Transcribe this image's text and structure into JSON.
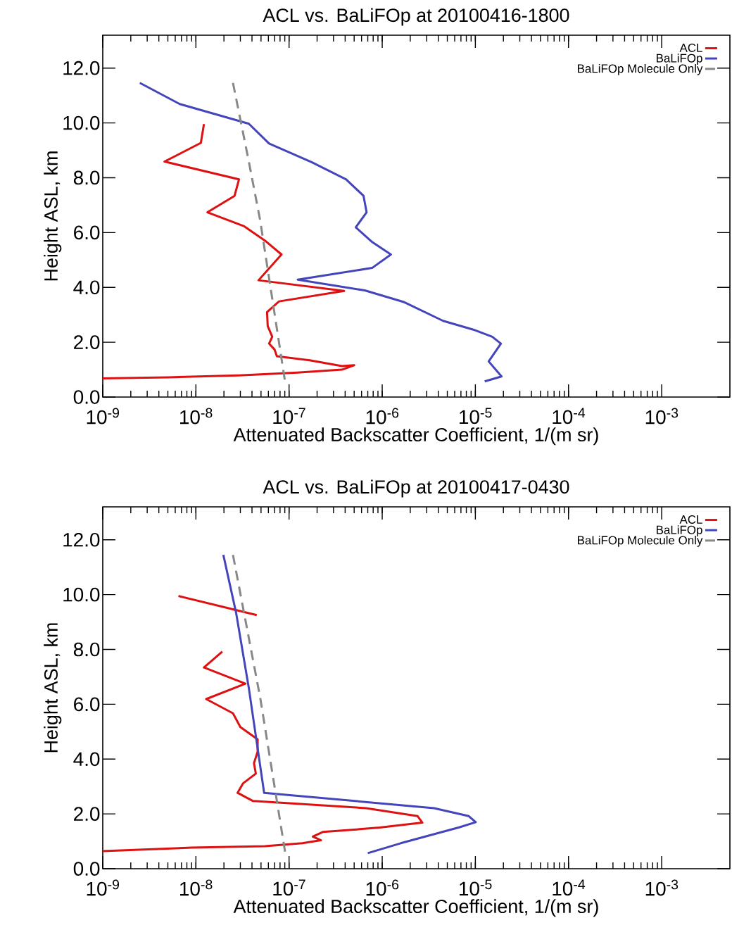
{
  "chart_data": [
    {
      "type": "line",
      "title": "ACL vs. BaLiFOp at 20100416-1800",
      "xlabel": "Attenuated Backscatter Coefficient, 1/(m sr)",
      "ylabel": "Height ASL, km",
      "log": "x",
      "legend": "top right",
      "xlim": [
        1e-09,
        0.0054
      ],
      "ylim": [
        0,
        13.2
      ],
      "xticks": [
        {
          "value": 1e-09,
          "label": "10$^{-9}$"
        },
        {
          "value": 1e-08,
          "label": "10$^{-8}$"
        },
        {
          "value": 1e-07,
          "label": "10$^{-7}$"
        },
        {
          "value": 1e-06,
          "label": "10$^{-6}$"
        },
        {
          "value": 1e-05,
          "label": "10$^{-5}$"
        },
        {
          "value": 0.0001,
          "label": "10$^{-4}$"
        },
        {
          "value": 0.001,
          "label": "10$^{-3}$"
        }
      ],
      "yticks": [
        {
          "value": 0,
          "label": "0.0"
        },
        {
          "value": 2,
          "label": "2.0"
        },
        {
          "value": 4,
          "label": "4.0"
        },
        {
          "value": 6,
          "label": "6.0"
        },
        {
          "value": 8,
          "label": "8.0"
        },
        {
          "value": 10,
          "label": "10.0"
        },
        {
          "value": 12,
          "label": "12.0"
        }
      ],
      "series": [
        {
          "name": "ACL",
          "color": "#dd1111",
          "line_style": "solid",
          "x": [
            1.22e-08,
            1.13e-08,
            4.6e-09,
            2.9e-08,
            2.6e-08,
            1.33e-08,
            3.3e-08,
            5.5e-08,
            8.3e-08,
            4.7e-08,
            3.9e-07,
            7.8e-08,
            5.8e-08,
            5.9e-08,
            6.6e-08,
            6.1e-08,
            7e-08,
            7.4e-08,
            1.66e-07,
            3.7e-07,
            5e-07,
            3.7e-07,
            1.23e-07,
            2.9e-08,
            5.1e-09,
            1e-09
          ],
          "values": [
            9.96,
            9.27,
            8.59,
            7.94,
            7.34,
            6.74,
            6.23,
            5.71,
            5.2,
            4.26,
            3.87,
            3.49,
            3.1,
            2.59,
            2.2,
            1.95,
            1.73,
            1.49,
            1.34,
            1.13,
            1.16,
            1.0,
            0.89,
            0.79,
            0.72,
            0.68
          ]
        },
        {
          "name": "BaLiFOp",
          "color": "#4444bb",
          "line_style": "solid",
          "x": [
            2.5e-09,
            6.7e-09,
            3.7e-08,
            6.1e-08,
            1.75e-07,
            4.1e-07,
            6.3e-07,
            6.8e-07,
            5.2e-07,
            7.7e-07,
            1.24e-06,
            7.8e-07,
            1.24e-07,
            6.5e-07,
            1.73e-06,
            4.5e-06,
            9.5e-06,
            1.52e-05,
            1.88e-05,
            1.39e-05,
            1.91e-05,
            1.26e-05
          ],
          "values": [
            11.46,
            10.69,
            9.97,
            9.25,
            8.57,
            7.94,
            7.34,
            6.74,
            6.19,
            5.67,
            5.2,
            4.71,
            4.28,
            3.89,
            3.46,
            2.78,
            2.46,
            2.2,
            1.95,
            1.3,
            0.75,
            0.57
          ]
        },
        {
          "name": "BaLiFOp Molecule Only",
          "color": "#888888",
          "line_style": "dashed",
          "x": [
            2.5e-08,
            3.7e-08,
            4.9e-08,
            9e-08
          ],
          "values": [
            11.46,
            8.59,
            6.44,
            0.62
          ]
        }
      ]
    },
    {
      "type": "line",
      "title": "ACL vs. BaLiFOp at 20100417-0430",
      "xlabel": "Attenuated Backscatter Coefficient, 1/(m sr)",
      "ylabel": "Height ASL, km",
      "log": "x",
      "legend": "top right",
      "xlim": [
        1e-09,
        0.0054
      ],
      "ylim": [
        0,
        13.2
      ],
      "xticks": [
        {
          "value": 1e-09,
          "label": "10$^{-9}$"
        },
        {
          "value": 1e-08,
          "label": "10$^{-8}$"
        },
        {
          "value": 1e-07,
          "label": "10$^{-7}$"
        },
        {
          "value": 1e-06,
          "label": "10$^{-6}$"
        },
        {
          "value": 1e-05,
          "label": "10$^{-5}$"
        },
        {
          "value": 0.0001,
          "label": "10$^{-4}$"
        },
        {
          "value": 0.001,
          "label": "10$^{-3}$"
        }
      ],
      "yticks": [
        {
          "value": 0,
          "label": "0.0"
        },
        {
          "value": 2,
          "label": "2.0"
        },
        {
          "value": 4,
          "label": "4.0"
        },
        {
          "value": 6,
          "label": "6.0"
        },
        {
          "value": 8,
          "label": "8.0"
        },
        {
          "value": 10,
          "label": "10.0"
        },
        {
          "value": 12,
          "label": "12.0"
        }
      ],
      "series": [
        {
          "name": "ACL",
          "color": "#dd1111",
          "line_style": "solid",
          "x": [
            6.5e-09,
            4.5e-08,
            null,
            1.92e-08,
            1.22e-08,
            3.4e-08,
            1.29e-08,
            2.5e-08,
            3e-08,
            4.6e-08,
            4.6e-08,
            4.2e-08,
            4.4e-08,
            3.2e-08,
            2.8e-08,
            4.1e-08,
            6.7e-07,
            2.4e-06,
            2.7e-06,
            9.4e-07,
            2.3e-07,
            1.8e-07,
            2.2e-07,
            1.39e-07,
            5.5e-08,
            9.1e-09,
            1e-09
          ],
          "values": [
            9.95,
            9.25,
            null,
            7.92,
            7.34,
            6.75,
            6.19,
            5.67,
            5.17,
            4.72,
            4.27,
            3.85,
            3.47,
            3.11,
            2.77,
            2.47,
            2.21,
            1.92,
            1.68,
            1.5,
            1.34,
            1.17,
            1.04,
            0.93,
            0.82,
            0.77,
            0.64
          ]
        },
        {
          "name": "BaLiFOp",
          "color": "#4444bb",
          "line_style": "solid",
          "x": [
            1.97e-08,
            2.7e-08,
            3.7e-08,
            5.4e-08,
            3.6e-06,
            8.5e-06,
            1.01e-05,
            6.7e-06,
            1.58e-06,
            7e-07
          ],
          "values": [
            11.45,
            9.34,
            6.59,
            2.77,
            2.21,
            1.92,
            1.7,
            1.51,
            0.93,
            0.57
          ]
        },
        {
          "name": "BaLiFOp Molecule Only",
          "color": "#888888",
          "line_style": "dashed",
          "x": [
            2.5e-08,
            4.9e-08,
            9.1e-08
          ],
          "values": [
            11.45,
            6.24,
            0.58
          ]
        }
      ]
    }
  ]
}
